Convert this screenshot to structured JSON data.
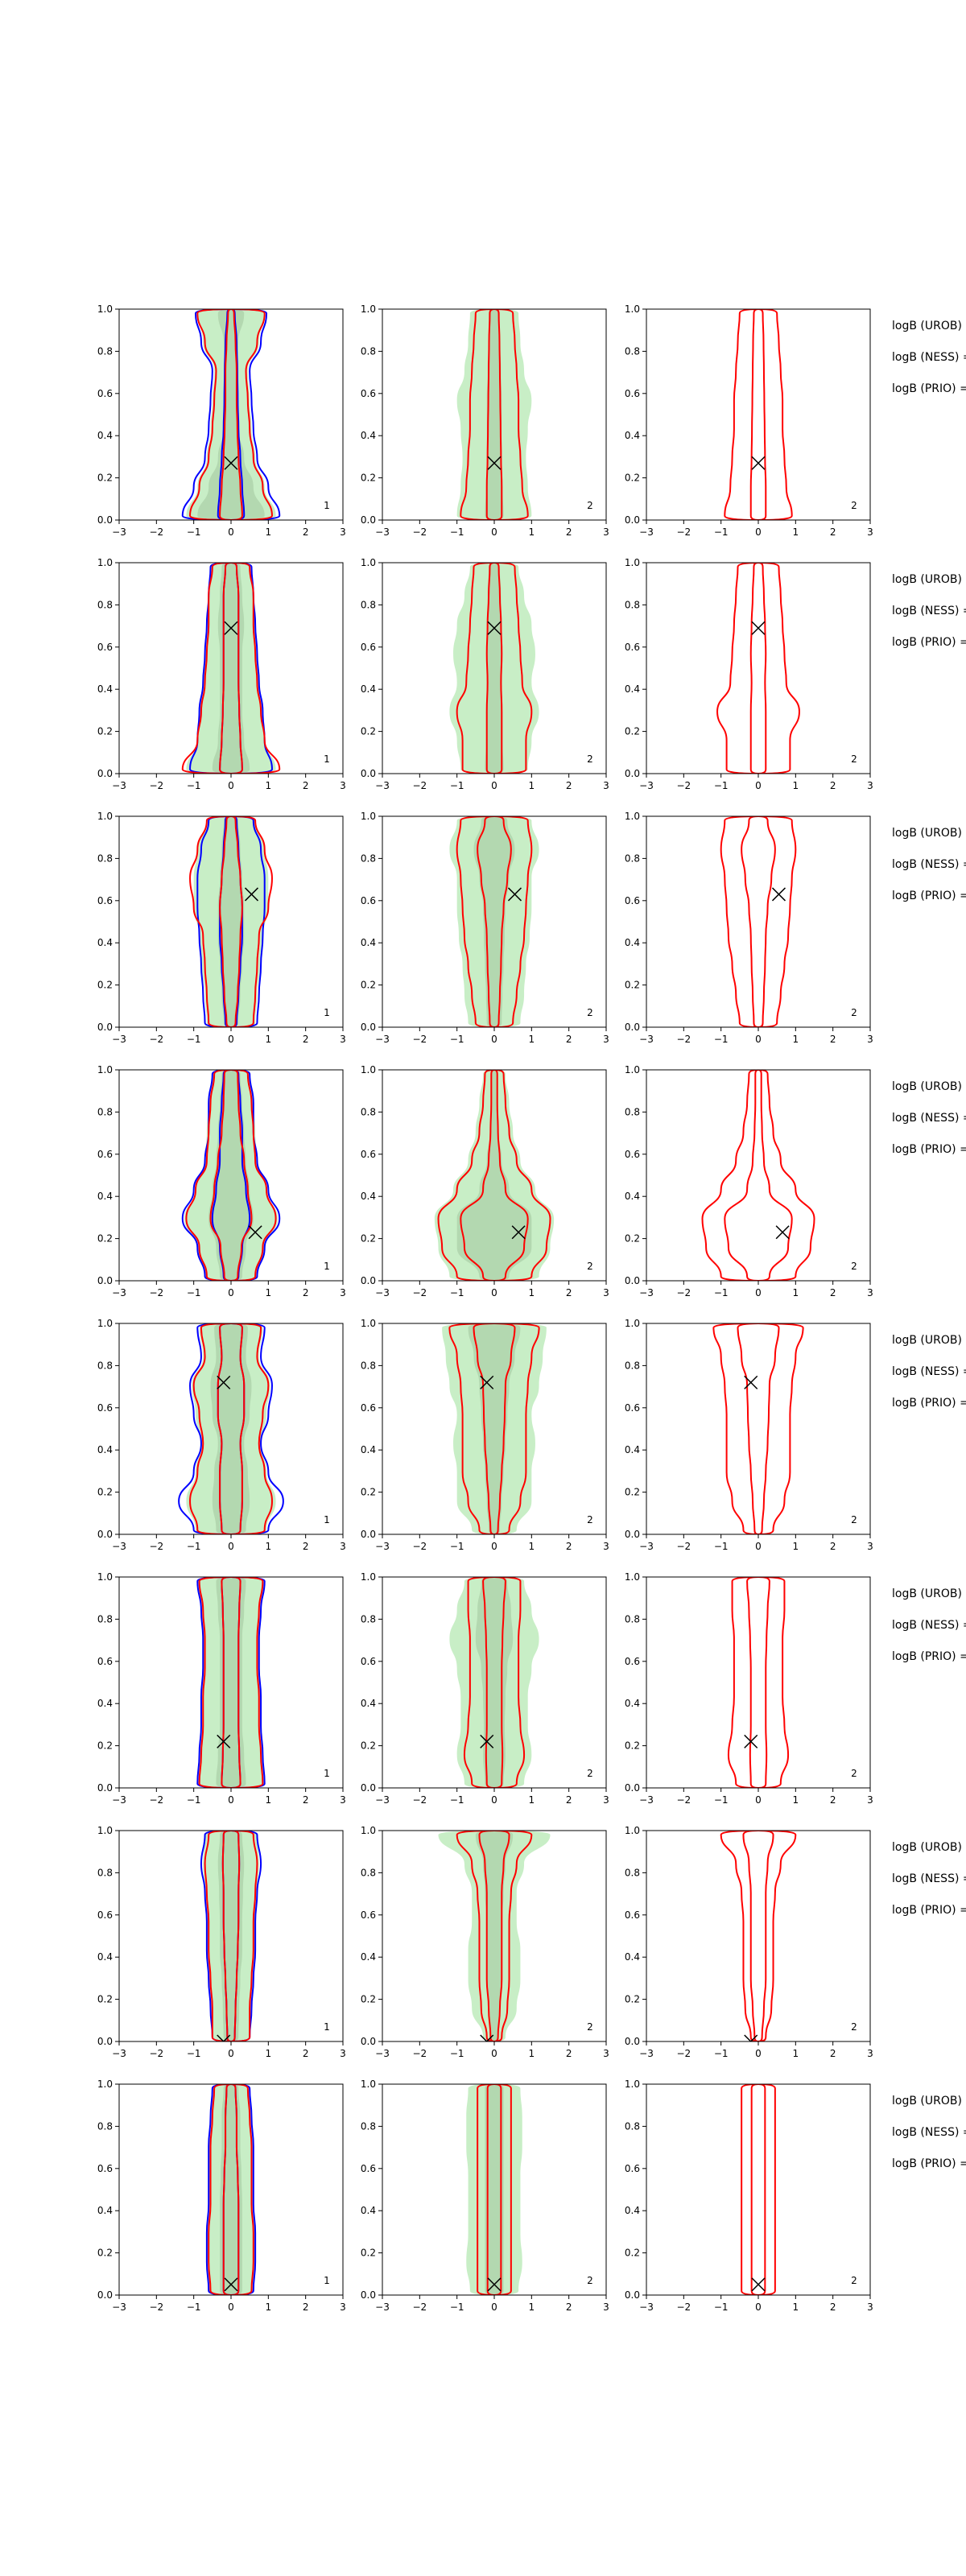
{
  "figure": {
    "background": "#ffffff"
  },
  "colors": {
    "filled_outer": "#c8eec6",
    "filled_inner": "#b3d8b0",
    "contour_blue": "#0000ff",
    "contour_red": "#ff0000",
    "marker": "#000000",
    "axes": "#000000"
  },
  "axes_common": {
    "xlim": [
      -3,
      3
    ],
    "ylim": [
      0,
      1
    ],
    "xticks": [
      "−3",
      "−2",
      "−1",
      "0",
      "1",
      "2",
      "3"
    ],
    "yticks": [
      "0.0",
      "0.2",
      "0.4",
      "0.6",
      "0.8",
      "1.0"
    ]
  },
  "panel_numbers": [
    "1",
    "2",
    "2"
  ],
  "side_labels": [
    "logB (UROB) =",
    "logB (NESS) =",
    "logB (PRIO) ="
  ],
  "chart_data": [
    {
      "type": "contour",
      "row": 1,
      "marker": {
        "x": 0.0,
        "y": 0.27
      },
      "profiles": {
        "p1": {
          "blue_outer": [
            1.3,
            1.0,
            0.7,
            0.6,
            0.55,
            0.5,
            0.8,
            0.95
          ],
          "blue_inner": [
            0.35,
            0.3,
            0.25,
            0.2,
            0.18,
            0.17,
            0.15,
            0.1
          ],
          "red_outer": [
            1.1,
            0.85,
            0.6,
            0.5,
            0.45,
            0.4,
            0.7,
            0.9
          ],
          "red_inner": [
            0.3,
            0.25,
            0.2,
            0.17,
            0.15,
            0.15,
            0.12,
            0.08
          ],
          "fill_outer": [
            1.2,
            0.9,
            0.65,
            0.55,
            0.5,
            0.45,
            0.75,
            0.9
          ],
          "fill_inner": [
            0.9,
            0.6,
            0.35,
            0.2,
            0.18,
            0.15,
            0.2,
            0.35
          ]
        },
        "p2": {
          "red_outer": [
            0.9,
            0.75,
            0.7,
            0.65,
            0.65,
            0.6,
            0.55,
            0.5
          ],
          "red_inner": [
            0.2,
            0.2,
            0.18,
            0.17,
            0.16,
            0.15,
            0.14,
            0.12
          ],
          "fill_outer": [
            1.0,
            0.9,
            0.85,
            0.9,
            1.0,
            0.8,
            0.7,
            0.65
          ],
          "fill_inner": [
            0.25,
            0.22,
            0.2,
            0.2,
            0.2,
            0.18,
            0.15,
            0.15
          ]
        },
        "p3": {
          "red_outer": [
            0.9,
            0.75,
            0.7,
            0.65,
            0.65,
            0.6,
            0.55,
            0.5
          ],
          "red_inner": [
            0.2,
            0.2,
            0.18,
            0.17,
            0.16,
            0.15,
            0.14,
            0.12
          ]
        }
      }
    },
    {
      "type": "contour",
      "row": 2,
      "marker": {
        "x": 0.0,
        "y": 0.69
      },
      "profiles": {
        "p1": {
          "blue_outer": [
            1.1,
            0.9,
            0.85,
            0.75,
            0.7,
            0.65,
            0.6,
            0.55
          ],
          "blue_inner": [
            0.3,
            0.25,
            0.22,
            0.2,
            0.2,
            0.2,
            0.2,
            0.15
          ],
          "red_outer": [
            1.3,
            0.9,
            0.8,
            0.7,
            0.65,
            0.6,
            0.6,
            0.5
          ],
          "red_inner": [
            0.3,
            0.25,
            0.22,
            0.2,
            0.2,
            0.2,
            0.2,
            0.15
          ],
          "fill_outer": [
            1.2,
            0.9,
            0.85,
            0.75,
            0.7,
            0.65,
            0.6,
            0.55
          ],
          "fill_inner": [
            0.5,
            0.35,
            0.3,
            0.3,
            0.3,
            0.35,
            0.3,
            0.25
          ]
        },
        "p2": {
          "red_outer": [
            0.85,
            0.85,
            1.0,
            0.75,
            0.7,
            0.65,
            0.6,
            0.55
          ],
          "red_inner": [
            0.2,
            0.2,
            0.2,
            0.18,
            0.2,
            0.18,
            0.15,
            0.12
          ],
          "fill_outer": [
            0.9,
            1.0,
            1.2,
            1.0,
            1.1,
            1.0,
            0.8,
            0.65
          ],
          "fill_inner": [
            0.25,
            0.22,
            0.22,
            0.2,
            0.2,
            0.2,
            0.18,
            0.15
          ]
        },
        "p3": {
          "red_outer": [
            0.85,
            0.85,
            1.1,
            0.75,
            0.7,
            0.65,
            0.6,
            0.55
          ],
          "red_inner": [
            0.2,
            0.2,
            0.2,
            0.18,
            0.2,
            0.18,
            0.15,
            0.12
          ]
        }
      }
    },
    {
      "type": "contour",
      "row": 3,
      "marker": {
        "x": 0.55,
        "y": 0.63
      },
      "profiles": {
        "p1": {
          "blue_outer": [
            0.7,
            0.75,
            0.8,
            0.85,
            0.9,
            0.9,
            0.8,
            0.6
          ],
          "blue_inner": [
            0.15,
            0.2,
            0.25,
            0.3,
            0.3,
            0.25,
            0.2,
            0.15
          ],
          "red_outer": [
            0.6,
            0.65,
            0.7,
            0.75,
            1.0,
            1.1,
            0.9,
            0.65
          ],
          "red_inner": [
            0.12,
            0.18,
            0.22,
            0.25,
            0.3,
            0.25,
            0.18,
            0.12
          ],
          "fill_outer": [
            0.65,
            0.7,
            0.8,
            0.85,
            1.0,
            1.0,
            0.9,
            0.65
          ],
          "fill_inner": [
            0.2,
            0.25,
            0.3,
            0.35,
            0.35,
            0.3,
            0.25,
            0.2
          ]
        },
        "p2": {
          "red_outer": [
            0.5,
            0.6,
            0.7,
            0.8,
            0.85,
            0.9,
            1.0,
            0.9
          ],
          "red_inner": [
            0.12,
            0.15,
            0.18,
            0.2,
            0.25,
            0.35,
            0.45,
            0.25
          ],
          "fill_outer": [
            0.7,
            0.8,
            0.85,
            0.95,
            1.0,
            1.0,
            1.2,
            1.0
          ],
          "fill_inner": [
            0.2,
            0.22,
            0.25,
            0.28,
            0.3,
            0.4,
            0.55,
            0.35
          ]
        },
        "p3": {
          "red_outer": [
            0.5,
            0.6,
            0.7,
            0.8,
            0.85,
            0.9,
            1.0,
            0.9
          ],
          "red_inner": [
            0.12,
            0.15,
            0.18,
            0.2,
            0.25,
            0.35,
            0.45,
            0.25
          ]
        }
      }
    },
    {
      "type": "contour",
      "row": 4,
      "marker": {
        "x": 0.65,
        "y": 0.23
      },
      "profiles": {
        "p1": {
          "blue_outer": [
            0.7,
            0.9,
            1.3,
            1.0,
            0.7,
            0.6,
            0.6,
            0.5
          ],
          "blue_inner": [
            0.2,
            0.3,
            0.5,
            0.4,
            0.3,
            0.3,
            0.25,
            0.2
          ],
          "red_outer": [
            0.65,
            0.85,
            1.2,
            0.95,
            0.65,
            0.6,
            0.55,
            0.45
          ],
          "red_inner": [
            0.18,
            0.28,
            0.55,
            0.45,
            0.35,
            0.25,
            0.2,
            0.18
          ],
          "fill_outer": [
            0.7,
            0.9,
            1.25,
            0.95,
            0.7,
            0.65,
            0.6,
            0.5
          ],
          "fill_inner": [
            0.3,
            0.4,
            0.6,
            0.5,
            0.4,
            0.35,
            0.3,
            0.25
          ]
        },
        "p2": {
          "red_outer": [
            1.0,
            1.4,
            1.5,
            1.0,
            0.6,
            0.4,
            0.3,
            0.25
          ],
          "red_inner": [
            0.3,
            0.8,
            0.9,
            0.3,
            0.15,
            0.1,
            0.08,
            0.08
          ],
          "fill_outer": [
            1.2,
            1.5,
            1.6,
            1.1,
            0.7,
            0.5,
            0.4,
            0.3
          ],
          "fill_inner": [
            0.4,
            1.0,
            1.0,
            0.4,
            0.2,
            0.12,
            0.1,
            0.1
          ]
        },
        "p3": {
          "red_outer": [
            1.0,
            1.4,
            1.5,
            1.0,
            0.6,
            0.4,
            0.3,
            0.25
          ],
          "red_inner": [
            0.3,
            0.8,
            0.9,
            0.3,
            0.15,
            0.1,
            0.08,
            0.08
          ]
        }
      }
    },
    {
      "type": "contour",
      "row": 5,
      "marker": {
        "x": -0.2,
        "y": 0.72
      },
      "profiles": {
        "p1": {
          "blue_outer": [
            1.0,
            1.4,
            1.0,
            0.8,
            1.0,
            1.1,
            0.8,
            0.9
          ],
          "blue_inner": [
            0.25,
            0.3,
            0.3,
            0.25,
            0.35,
            0.35,
            0.25,
            0.3
          ],
          "red_outer": [
            0.9,
            1.1,
            0.9,
            0.75,
            0.85,
            1.0,
            0.7,
            0.8
          ],
          "red_inner": [
            0.25,
            0.3,
            0.3,
            0.25,
            0.35,
            0.35,
            0.25,
            0.3
          ],
          "fill_outer": [
            0.95,
            1.2,
            0.95,
            0.8,
            0.95,
            1.05,
            0.75,
            0.85
          ],
          "fill_inner": [
            0.4,
            0.5,
            0.45,
            0.35,
            0.5,
            0.55,
            0.4,
            0.45
          ]
        },
        "p2": {
          "red_outer": [
            0.4,
            0.7,
            0.85,
            0.85,
            0.85,
            0.9,
            1.0,
            1.2
          ],
          "red_inner": [
            0.1,
            0.15,
            0.2,
            0.25,
            0.28,
            0.3,
            0.45,
            0.55
          ],
          "fill_outer": [
            0.6,
            1.0,
            1.0,
            1.1,
            1.0,
            1.2,
            1.3,
            1.4
          ],
          "fill_inner": [
            0.15,
            0.2,
            0.25,
            0.3,
            0.35,
            0.4,
            0.55,
            0.7
          ]
        },
        "p3": {
          "red_outer": [
            0.4,
            0.7,
            0.85,
            0.85,
            0.85,
            0.9,
            1.0,
            1.2
          ],
          "red_inner": [
            0.1,
            0.15,
            0.2,
            0.25,
            0.28,
            0.3,
            0.45,
            0.55
          ]
        }
      }
    },
    {
      "type": "contour",
      "row": 6,
      "marker": {
        "x": -0.2,
        "y": 0.22
      },
      "profiles": {
        "p1": {
          "blue_outer": [
            0.9,
            0.85,
            0.8,
            0.8,
            0.75,
            0.75,
            0.8,
            0.9
          ],
          "blue_inner": [
            0.25,
            0.22,
            0.2,
            0.2,
            0.2,
            0.2,
            0.22,
            0.25
          ],
          "red_outer": [
            0.85,
            0.8,
            0.75,
            0.75,
            0.7,
            0.7,
            0.75,
            0.85
          ],
          "red_inner": [
            0.25,
            0.22,
            0.2,
            0.2,
            0.2,
            0.2,
            0.22,
            0.25
          ],
          "fill_outer": [
            0.9,
            0.85,
            0.8,
            0.8,
            0.75,
            0.75,
            0.8,
            0.9
          ],
          "fill_inner": [
            0.4,
            0.35,
            0.3,
            0.3,
            0.3,
            0.3,
            0.35,
            0.4
          ]
        },
        "p2": {
          "red_outer": [
            0.6,
            0.8,
            0.7,
            0.65,
            0.65,
            0.65,
            0.7,
            0.7
          ],
          "red_inner": [
            0.2,
            0.22,
            0.2,
            0.2,
            0.2,
            0.22,
            0.25,
            0.3
          ],
          "fill_outer": [
            0.8,
            1.0,
            0.9,
            0.9,
            1.0,
            1.2,
            1.0,
            0.8
          ],
          "fill_inner": [
            0.25,
            0.3,
            0.28,
            0.3,
            0.35,
            0.5,
            0.45,
            0.35
          ]
        },
        "p3": {
          "red_outer": [
            0.6,
            0.8,
            0.7,
            0.65,
            0.65,
            0.65,
            0.7,
            0.7
          ],
          "red_inner": [
            0.2,
            0.22,
            0.2,
            0.2,
            0.2,
            0.22,
            0.25,
            0.3
          ]
        }
      }
    },
    {
      "type": "contour",
      "row": 7,
      "marker": {
        "x": -0.2,
        "y": 0.0
      },
      "profiles": {
        "p1": {
          "blue_outer": [
            0.5,
            0.55,
            0.6,
            0.65,
            0.65,
            0.7,
            0.8,
            0.7
          ],
          "blue_inner": [
            0.1,
            0.12,
            0.15,
            0.18,
            0.2,
            0.2,
            0.22,
            0.2
          ],
          "red_outer": [
            0.5,
            0.5,
            0.55,
            0.6,
            0.6,
            0.65,
            0.7,
            0.6
          ],
          "red_inner": [
            0.1,
            0.12,
            0.15,
            0.18,
            0.2,
            0.2,
            0.22,
            0.2
          ],
          "fill_outer": [
            0.5,
            0.55,
            0.6,
            0.65,
            0.65,
            0.7,
            0.75,
            0.7
          ],
          "fill_inner": [
            0.2,
            0.22,
            0.25,
            0.3,
            0.3,
            0.32,
            0.35,
            0.3
          ]
        },
        "p2": {
          "red_outer": [
            0.2,
            0.35,
            0.4,
            0.4,
            0.4,
            0.45,
            0.6,
            1.0
          ],
          "red_inner": [
            0.1,
            0.15,
            0.2,
            0.2,
            0.2,
            0.2,
            0.25,
            0.4
          ],
          "fill_outer": [
            0.3,
            0.6,
            0.7,
            0.7,
            0.6,
            0.6,
            0.8,
            1.5
          ],
          "fill_inner": [
            0.1,
            0.15,
            0.2,
            0.2,
            0.2,
            0.25,
            0.3,
            0.5
          ]
        },
        "p3": {
          "red_outer": [
            0.2,
            0.35,
            0.4,
            0.4,
            0.4,
            0.45,
            0.6,
            1.0
          ],
          "red_inner": [
            0.1,
            0.15,
            0.2,
            0.2,
            0.2,
            0.2,
            0.25,
            0.4
          ]
        }
      }
    },
    {
      "type": "contour",
      "row": 8,
      "marker": {
        "x": 0.0,
        "y": 0.05
      },
      "profiles": {
        "p1": {
          "blue_outer": [
            0.6,
            0.65,
            0.65,
            0.6,
            0.6,
            0.6,
            0.55,
            0.5
          ],
          "blue_inner": [
            0.2,
            0.2,
            0.2,
            0.2,
            0.18,
            0.15,
            0.15,
            0.12
          ],
          "red_outer": [
            0.55,
            0.6,
            0.6,
            0.55,
            0.55,
            0.55,
            0.5,
            0.45
          ],
          "red_inner": [
            0.2,
            0.2,
            0.2,
            0.2,
            0.18,
            0.15,
            0.15,
            0.12
          ],
          "fill_outer": [
            0.6,
            0.65,
            0.65,
            0.6,
            0.6,
            0.6,
            0.55,
            0.5
          ],
          "fill_inner": [
            0.3,
            0.3,
            0.3,
            0.3,
            0.28,
            0.25,
            0.25,
            0.2
          ]
        },
        "p2": {
          "red_outer": [
            0.45,
            0.45,
            0.45,
            0.45,
            0.45,
            0.45,
            0.45,
            0.45
          ],
          "red_inner": [
            0.18,
            0.18,
            0.18,
            0.18,
            0.18,
            0.18,
            0.18,
            0.18
          ],
          "fill_outer": [
            0.65,
            0.75,
            0.7,
            0.7,
            0.7,
            0.75,
            0.75,
            0.7
          ],
          "fill_inner": [
            0.25,
            0.25,
            0.25,
            0.25,
            0.25,
            0.25,
            0.25,
            0.25
          ]
        },
        "p3": {
          "red_outer": [
            0.45,
            0.45,
            0.45,
            0.45,
            0.45,
            0.45,
            0.45,
            0.45
          ],
          "red_inner": [
            0.18,
            0.18,
            0.18,
            0.18,
            0.18,
            0.18,
            0.18,
            0.18
          ]
        }
      }
    }
  ]
}
